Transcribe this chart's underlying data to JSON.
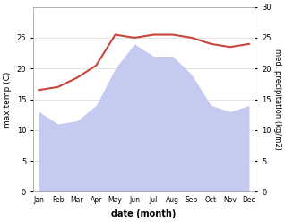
{
  "months": [
    "Jan",
    "Feb",
    "Mar",
    "Apr",
    "May",
    "Jun",
    "Jul",
    "Aug",
    "Sep",
    "Oct",
    "Nov",
    "Dec"
  ],
  "max_temp": [
    16.5,
    17.0,
    18.5,
    20.5,
    25.5,
    25.0,
    25.5,
    25.5,
    25.0,
    24.0,
    23.5,
    24.0
  ],
  "med_precip": [
    13,
    11,
    11.5,
    14,
    20,
    24,
    22,
    22,
    19,
    14,
    13,
    14
  ],
  "temp_color": "#c9453a",
  "precip_fill_color": "#c5caf0",
  "temp_ylim": [
    0,
    30
  ],
  "precip_ylim": [
    0,
    30
  ],
  "right_ylim": [
    0,
    30
  ],
  "xlabel": "date (month)",
  "ylabel_left": "max temp (C)",
  "ylabel_right": "med. precipitation (kg/m2)",
  "bg_color": "#ffffff",
  "grid_color": "#d8d8d8",
  "yticks_left": [
    0,
    5,
    10,
    15,
    20,
    25
  ],
  "yticks_right": [
    0,
    5,
    10,
    15,
    20,
    25,
    30
  ]
}
